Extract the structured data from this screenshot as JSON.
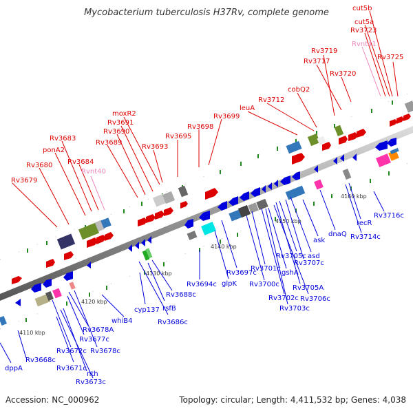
{
  "title": "Mycobacterium tuberculosis H37Rv, complete genome",
  "accession": "Accession: NC_000962",
  "topology": "Topology: circular; Length: 4,411,532 bp; Genes: 4,038",
  "positions": {
    "p4110": "4110 kbp",
    "p4120": "4120 kbp",
    "p4130": "4130 kbp",
    "p4140": "4140 kbp",
    "p4150": "4150 kbp",
    "p4160": "4160 kbp"
  },
  "top_labels": {
    "cut5b": "cut5b",
    "cut5a": "cut5a",
    "Rv3723": "Rv3723",
    "Rvnt41": "Rvnt41",
    "Rv3725": "Rv3725",
    "Rv3719": "Rv3719",
    "Rv3717": "Rv3717",
    "Rv3720": "Rv3720",
    "cobQ2": "cobQ2",
    "Rv3712": "Rv3712",
    "leuA": "leuA",
    "moxR2": "moxR2",
    "Rv3691": "Rv3691",
    "Rv3690": "Rv3690",
    "Rv3689": "Rv3689",
    "Rv3699": "Rv3699",
    "Rv3698": "Rv3698",
    "Rv3695": "Rv3695",
    "Rv3693": "Rv3693",
    "Rv3683": "Rv3683",
    "ponA2": "ponA2",
    "Rv3684": "Rv3684",
    "Rv3680": "Rv3680",
    "Rvnt40": "Rvnt40",
    "Rv3679": "Rv3679"
  },
  "bottom_labels": {
    "Rv3716c": "Rv3716c",
    "recR": "recR",
    "Rv3714c": "Rv3714c",
    "dnaQ": "dnaQ",
    "ask": "ask",
    "asd": "asd",
    "Rv3707c": "Rv3707c",
    "Rv3705c": "Rv3705c",
    "Rv3705A": "Rv3705A",
    "Rv3706c": "Rv3706c",
    "gshA": "gshA",
    "Rv3701c": "Rv3701c",
    "Rv3700c": "Rv3700c",
    "Rv3702c": "Rv3702c",
    "Rv3703c": "Rv3703c",
    "Rv3697c": "Rv3697c",
    "glpK": "glpK",
    "Rv3694c": "Rv3694c",
    "Rv3688c": "Rv3688c",
    "rsfB": "rsfB",
    "cyp137": "cyp137",
    "Rv3686c": "Rv3686c",
    "whiB4": "whiB4",
    "Rv3678A": "Rv3678A",
    "Rv3677c": "Rv3677c",
    "Rv3678c": "Rv3678c",
    "Rv3672c": "Rv3672c",
    "Rv3668c": "Rv3668c",
    "Rv3671c": "Rv3671c",
    "nth": "nth",
    "Rv3673c": "Rv3673c",
    "dppA": "dppA"
  },
  "colors": {
    "forward": "#dd0000",
    "reverse": "#0000dd",
    "rna": "#ee88bb",
    "spine": "#888888",
    "tick": "#228822"
  }
}
